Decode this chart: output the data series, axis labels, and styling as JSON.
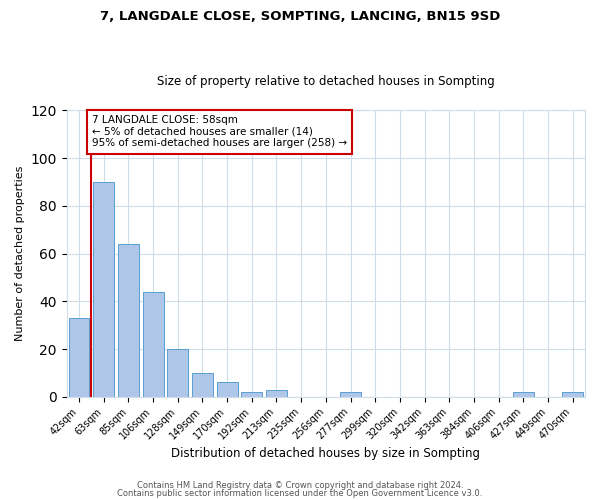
{
  "title": "7, LANGDALE CLOSE, SOMPTING, LANCING, BN15 9SD",
  "subtitle": "Size of property relative to detached houses in Sompting",
  "xlabel": "Distribution of detached houses by size in Sompting",
  "ylabel": "Number of detached properties",
  "bar_labels": [
    "42sqm",
    "63sqm",
    "85sqm",
    "106sqm",
    "128sqm",
    "149sqm",
    "170sqm",
    "192sqm",
    "213sqm",
    "235sqm",
    "256sqm",
    "277sqm",
    "299sqm",
    "320sqm",
    "342sqm",
    "363sqm",
    "384sqm",
    "406sqm",
    "427sqm",
    "449sqm",
    "470sqm"
  ],
  "bar_values": [
    33,
    90,
    64,
    44,
    20,
    10,
    6,
    2,
    3,
    0,
    0,
    2,
    0,
    0,
    0,
    0,
    0,
    0,
    2,
    0,
    2
  ],
  "bar_color": "#aec6e8",
  "bar_edge_color": "#5a9fd4",
  "vline_color": "#cc0000",
  "annotation_line1": "7 LANGDALE CLOSE: 58sqm",
  "annotation_line2": "← 5% of detached houses are smaller (14)",
  "annotation_line3": "95% of semi-detached houses are larger (258) →",
  "annotation_box_color": "#cc0000",
  "ylim": [
    0,
    120
  ],
  "yticks": [
    0,
    20,
    40,
    60,
    80,
    100,
    120
  ],
  "footer1": "Contains HM Land Registry data © Crown copyright and database right 2024.",
  "footer2": "Contains public sector information licensed under the Open Government Licence v3.0.",
  "background_color": "#ffffff",
  "grid_color": "#d0dce8"
}
